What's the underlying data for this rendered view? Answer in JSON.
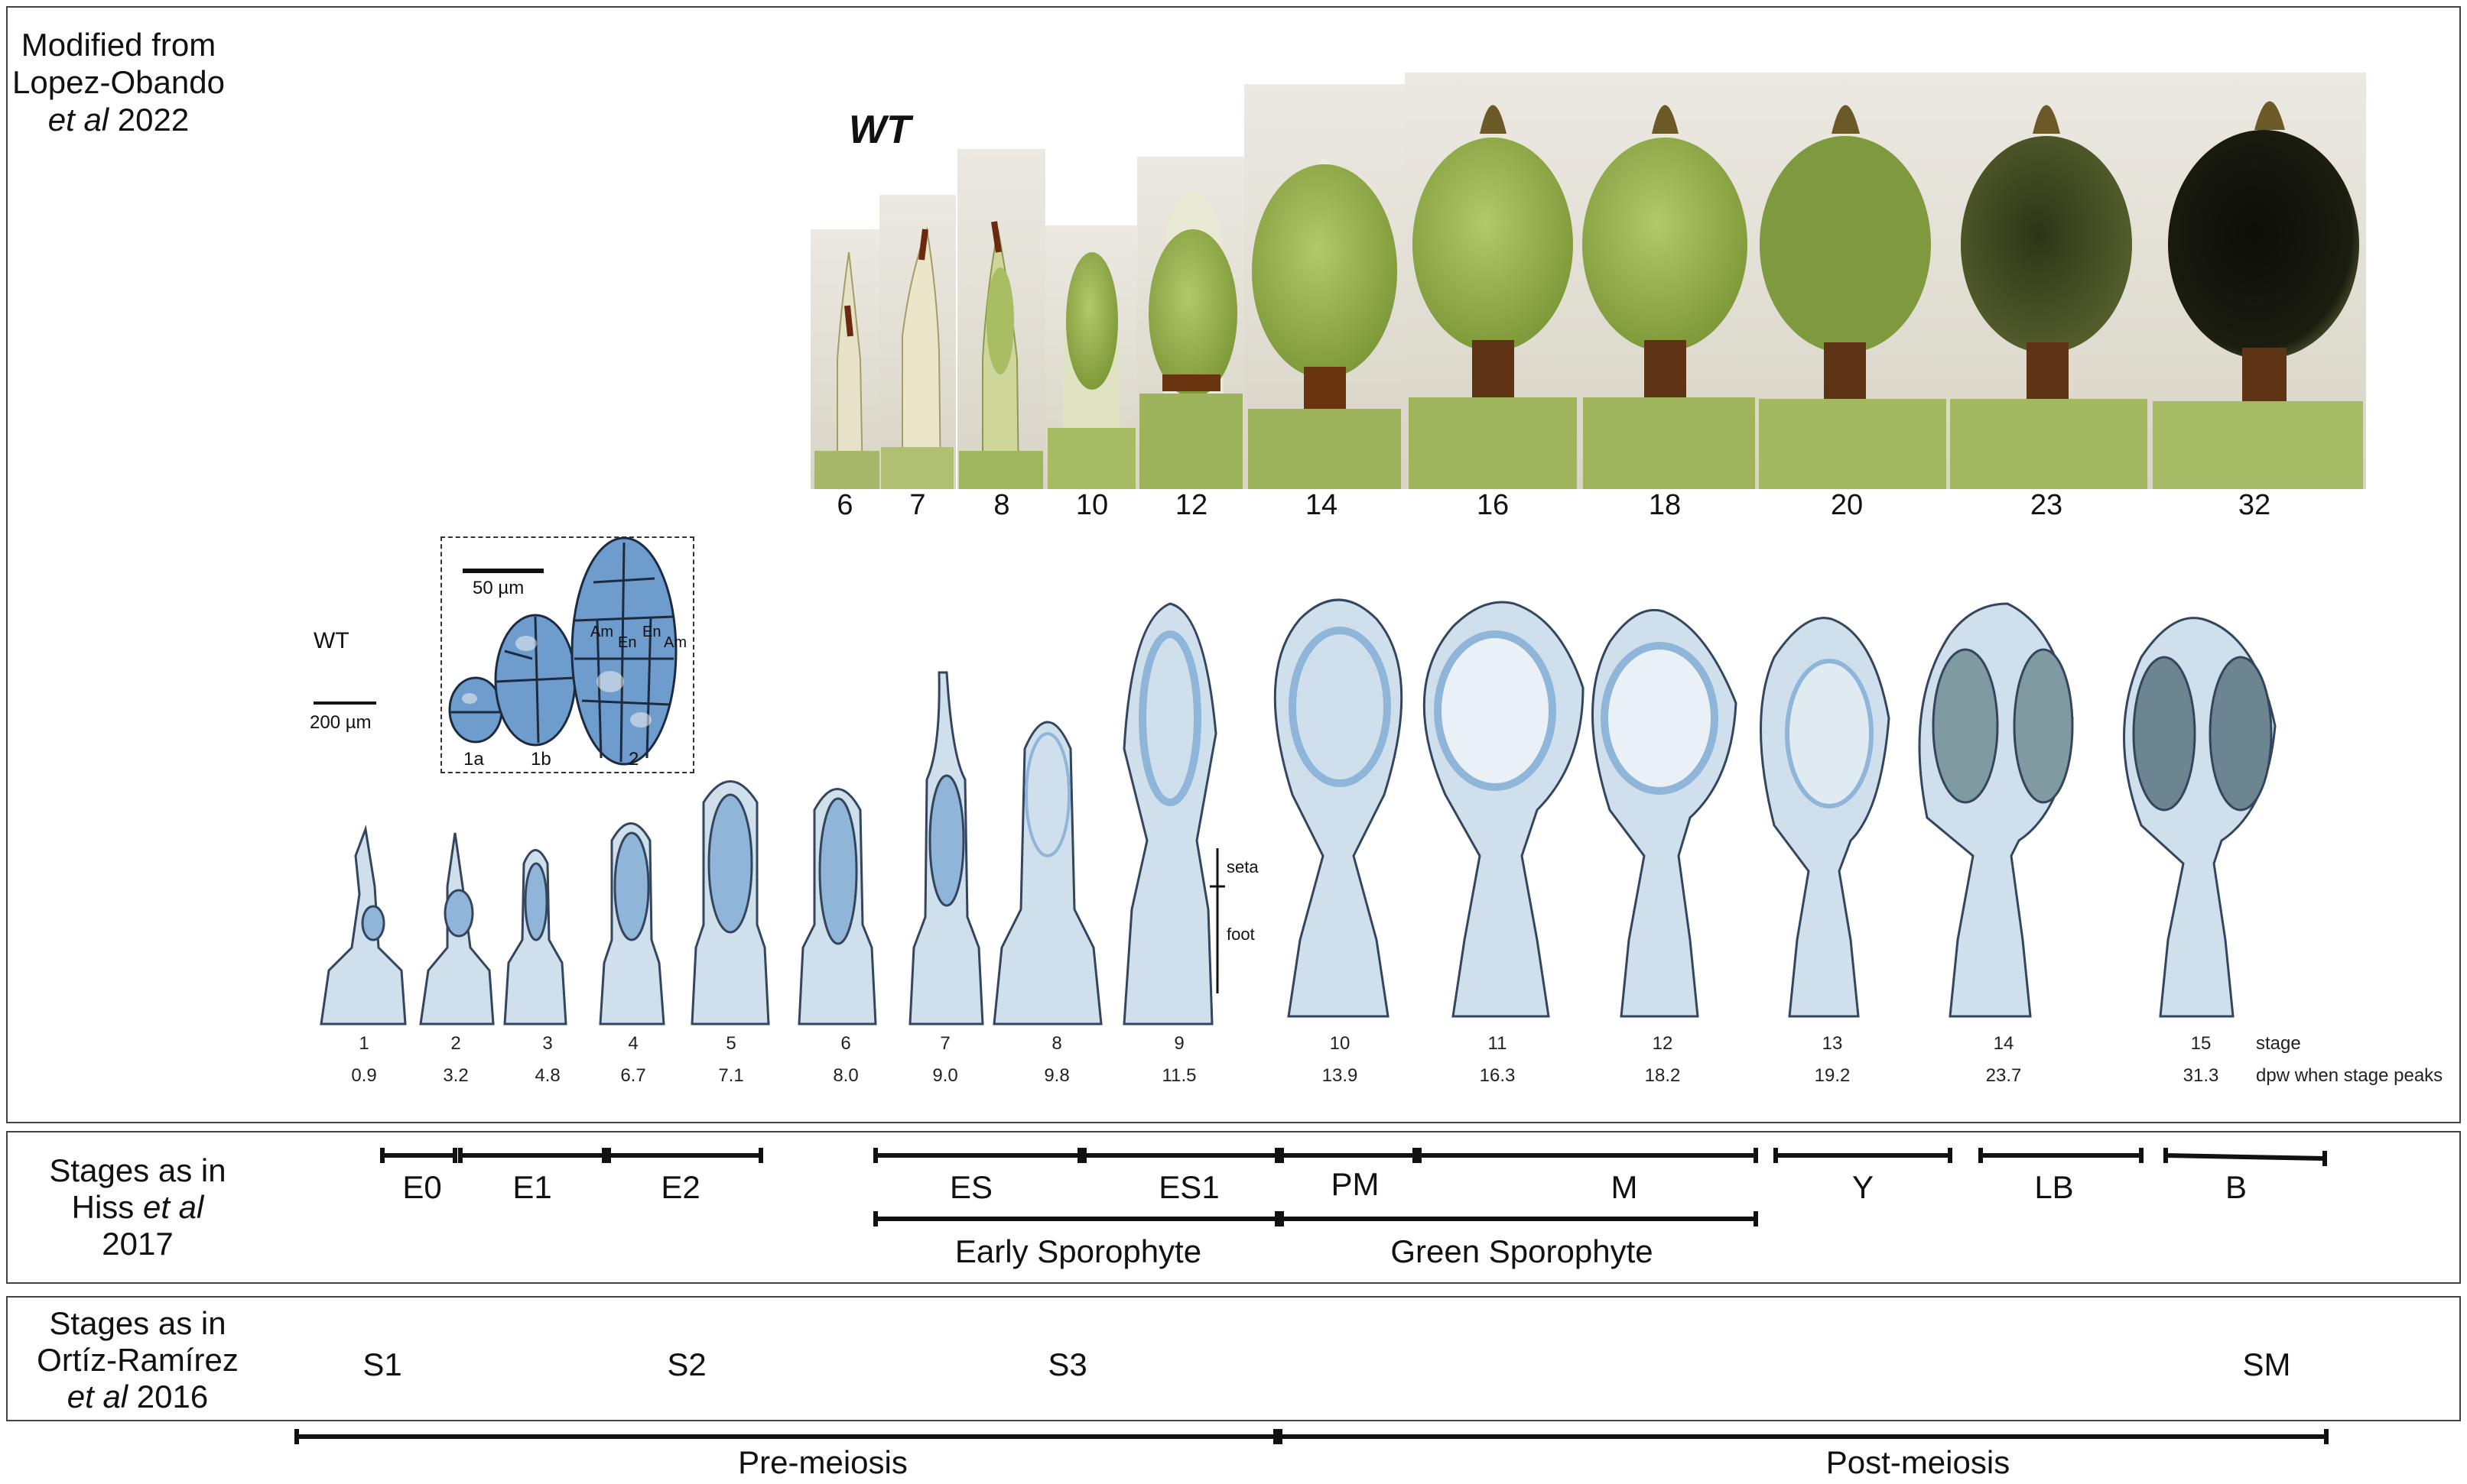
{
  "source_note": {
    "line1": "Modified from",
    "line2": "Lopez-Obando",
    "line3_italic": "et al",
    "line3_rest": " 2022"
  },
  "top_panel": {
    "genotype_label": "WT",
    "photo_stage_labels": [
      "6",
      "7",
      "8",
      "10",
      "12",
      "14",
      "16",
      "18",
      "20",
      "23",
      "32"
    ]
  },
  "section_panel": {
    "genotype_label": "WT",
    "scale_bar_label": "200 µm",
    "inset": {
      "scale_bar_label": "50 µm",
      "cell_labels": [
        "1a",
        "1b",
        "2"
      ],
      "tissue_labels": [
        "Am",
        "En",
        "En",
        "Am"
      ]
    },
    "structure_labels": [
      "seta",
      "foot"
    ],
    "stages": [
      "1",
      "2",
      "3",
      "4",
      "5",
      "6",
      "7",
      "8",
      "9",
      "10",
      "11",
      "12",
      "13",
      "14",
      "15"
    ],
    "dpw": [
      "0.9",
      "3.2",
      "4.8",
      "6.7",
      "7.1",
      "8.0",
      "9.0",
      "9.8",
      "11.5",
      "13.9",
      "16.3",
      "18.2",
      "19.2",
      "23.7",
      "31.3"
    ],
    "stage_row_label": "stage",
    "dpw_row_label": "dpw when stage peaks"
  },
  "hiss_panel": {
    "title_line1": "Stages as in",
    "title_line2_normal": "Hiss ",
    "title_line2_italic": "et al",
    "title_line3": "2017",
    "stage_bars": [
      "E0",
      "E1",
      "E2",
      "ES",
      "ES1",
      "PM",
      "M",
      "Y",
      "LB",
      "B"
    ],
    "group_bars": [
      "Early Sporophyte",
      "Green Sporophyte"
    ]
  },
  "ortiz_panel": {
    "title_line1": "Stages as in",
    "title_line2": "Ortíz-Ramírez",
    "title_line3_italic": "et al",
    "title_line3_rest": " 2016",
    "stage_bars": [
      "S1",
      "S2",
      "S3",
      "SM"
    ]
  },
  "meiosis": {
    "pre": "Pre-meiosis",
    "post": "Post-meiosis"
  },
  "colors": {
    "photo_green": "#8fae4a",
    "photo_dark": "#1e2410",
    "section_blue": "#8fb6d8",
    "section_outline": "#2d3f58",
    "bar": "#111111"
  }
}
